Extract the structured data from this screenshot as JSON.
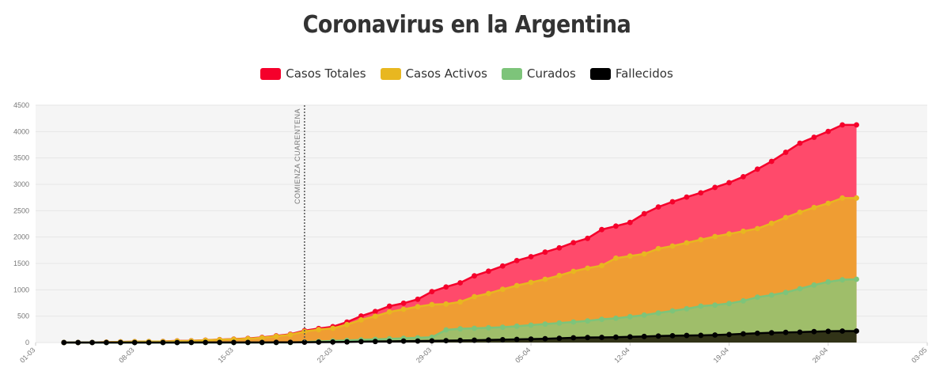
{
  "chart_data": {
    "type": "area",
    "title": "Coronavirus en la Argentina",
    "xlabel": "",
    "ylabel": "",
    "ylim": [
      0,
      4500
    ],
    "xlim": [
      "01-03",
      "03-05"
    ],
    "grid": true,
    "legend": "top-center",
    "y_ticks": [
      "0",
      "500",
      "1000",
      "1500",
      "2000",
      "2500",
      "3000",
      "3500",
      "4000",
      "4500"
    ],
    "x_ticks": [
      "01-03",
      "08-03",
      "15-03",
      "22-03",
      "29-03",
      "05-04",
      "12-04",
      "19-04",
      "26-04",
      "03-05"
    ],
    "annotation": {
      "label": "COMIENZA CUARENTENA",
      "date": "20-03"
    },
    "x_start": "03-03",
    "series": [
      {
        "name": "Casos Totales",
        "color": "#f5002b",
        "fill": "#ff4a6b",
        "values": [
          1,
          1,
          2,
          8,
          12,
          17,
          19,
          21,
          31,
          34,
          45,
          56,
          65,
          79,
          97,
          128,
          158,
          225,
          266,
          301,
          387,
          502,
          589,
          690,
          745,
          820,
          966,
          1054,
          1133,
          1265,
          1353,
          1451,
          1554,
          1628,
          1715,
          1795,
          1894,
          1975,
          2142,
          2208,
          2277,
          2443,
          2571,
          2669,
          2758,
          2839,
          2941,
          3031,
          3144,
          3288,
          3435,
          3607,
          3780,
          3892,
          4003,
          4127,
          4127
        ]
      },
      {
        "name": "Casos Activos",
        "color": "#e8b720",
        "fill": "#ef9d33",
        "values": [
          1,
          1,
          2,
          8,
          12,
          17,
          18,
          19,
          29,
          32,
          43,
          54,
          61,
          73,
          90,
          120,
          148,
          210,
          245,
          270,
          340,
          430,
          500,
          580,
          630,
          680,
          720,
          730,
          770,
          870,
          930,
          1010,
          1080,
          1140,
          1200,
          1270,
          1350,
          1410,
          1460,
          1600,
          1640,
          1680,
          1780,
          1830,
          1890,
          1950,
          2010,
          2060,
          2110,
          2160,
          2260,
          2370,
          2470,
          2560,
          2640,
          2740,
          2740
        ]
      },
      {
        "name": "Curados",
        "color": "#7dc47a",
        "fill": "#9fbe6a",
        "values": [
          0,
          0,
          0,
          0,
          0,
          0,
          0,
          0,
          0,
          0,
          0,
          0,
          0,
          0,
          0,
          0,
          0,
          10,
          20,
          30,
          40,
          50,
          60,
          70,
          80,
          90,
          100,
          240,
          260,
          270,
          280,
          290,
          310,
          330,
          350,
          370,
          390,
          410,
          440,
          460,
          490,
          520,
          560,
          600,
          640,
          690,
          710,
          740,
          790,
          860,
          900,
          950,
          1020,
          1090,
          1150,
          1190,
          1200
        ]
      },
      {
        "name": "Fallecidos",
        "color": "#000000",
        "fill": "#2b2b13",
        "values": [
          0,
          0,
          0,
          0,
          0,
          0,
          0,
          0,
          0,
          2,
          2,
          2,
          2,
          2,
          2,
          3,
          4,
          6,
          8,
          9,
          12,
          17,
          20,
          23,
          27,
          28,
          32,
          36,
          40,
          44,
          48,
          54,
          60,
          66,
          72,
          80,
          90,
          95,
          98,
          102,
          109,
          115,
          123,
          129,
          134,
          136,
          142,
          152,
          165,
          176,
          185,
          192,
          197,
          207,
          213,
          218,
          218
        ]
      }
    ]
  }
}
